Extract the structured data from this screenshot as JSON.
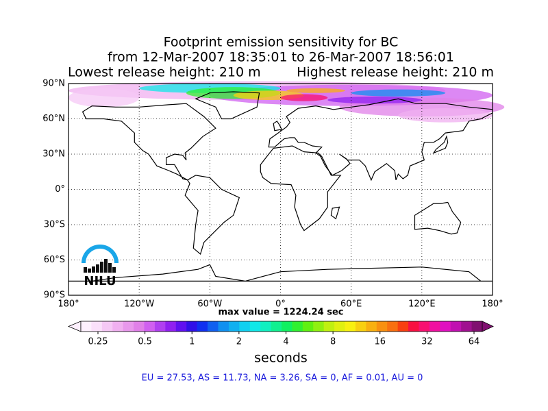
{
  "title": {
    "line1": "Footprint emission sensitivity for BC",
    "line2": "from 12-Mar-2007 18:35:01 to 26-Mar-2007 18:56:01",
    "left": "Lowest release height: 210 m",
    "right": "Highest release height: 210 m"
  },
  "map": {
    "xlim": [
      -180,
      180
    ],
    "ylim": [
      -90,
      90
    ],
    "grid": true,
    "xticks": [
      {
        "value": -180,
        "label": "180°"
      },
      {
        "value": -120,
        "label": "120°W"
      },
      {
        "value": -60,
        "label": "60°W"
      },
      {
        "value": 0,
        "label": "0°"
      },
      {
        "value": 60,
        "label": "60°E"
      },
      {
        "value": 120,
        "label": "120°E"
      },
      {
        "value": 180,
        "label": "180°"
      }
    ],
    "yticks": [
      {
        "value": 90,
        "label": "90°N"
      },
      {
        "value": 60,
        "label": "60°N"
      },
      {
        "value": 30,
        "label": "30°N"
      },
      {
        "value": 0,
        "label": "0°"
      },
      {
        "value": -30,
        "label": "30°S"
      },
      {
        "value": -60,
        "label": "60°S"
      },
      {
        "value": -90,
        "label": "90°S"
      }
    ]
  },
  "max_value": "max value = 1224.24 sec",
  "logo": "NILU",
  "colorbar": {
    "log_scale": true,
    "ticks": [
      0.25,
      0.5,
      1,
      2,
      4,
      8,
      16,
      32,
      64
    ],
    "label": "seconds",
    "colors": [
      "#fdf0fd",
      "#fae0fa",
      "#f5c8f5",
      "#f0b0f0",
      "#e898ec",
      "#e080e8",
      "#d060f0",
      "#b040f0",
      "#9020f0",
      "#6010f0",
      "#3010e8",
      "#1030f0",
      "#1060f0",
      "#1090f0",
      "#10b0f0",
      "#10d0f0",
      "#10e8e8",
      "#10f0c0",
      "#10f090",
      "#10f060",
      "#30f030",
      "#60f010",
      "#90f010",
      "#c0f010",
      "#e0f010",
      "#f8f010",
      "#f8d010",
      "#f8b010",
      "#f89010",
      "#f87010",
      "#f84010",
      "#f81040",
      "#f81070",
      "#f010a0",
      "#e010c0",
      "#c010b0",
      "#a01090",
      "#801070"
    ]
  },
  "footer": "EU = 27.53,  AS = 11.73,  NA = 3.26,  SA = 0,  AF = 0.01,  AU = 0"
}
